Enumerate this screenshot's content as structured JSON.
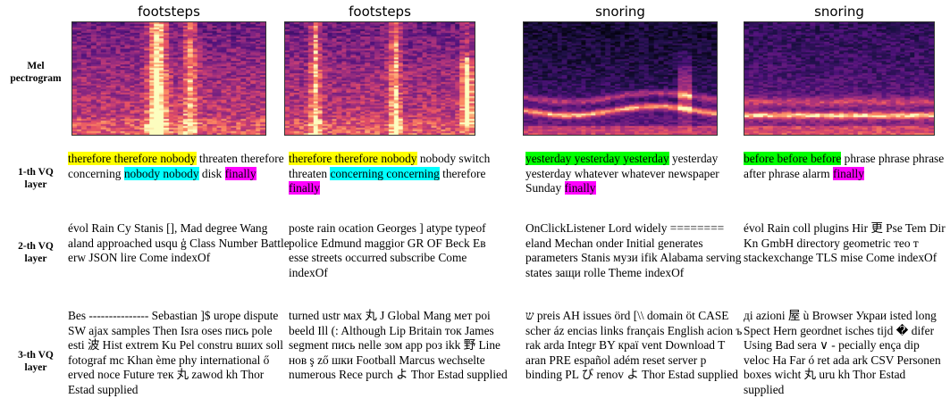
{
  "row_labels": {
    "mel": [
      "Mel",
      "pectrogram"
    ],
    "vq1": [
      "1-th VQ",
      "layer"
    ],
    "vq2": [
      "2-th VQ",
      "layer"
    ],
    "vq3": [
      "3-th VQ",
      "layer"
    ]
  },
  "columns": [
    {
      "title": "footsteps",
      "spectrogram": {
        "kind": "footsteps"
      },
      "vq1": [
        {
          "t": "therefore therefore nobody",
          "hl": "yellow"
        },
        {
          "t": " threaten therefore concerning ",
          "hl": ""
        },
        {
          "t": "nobody nobody",
          "hl": "cyan"
        },
        {
          "t": " disk ",
          "hl": ""
        },
        {
          "t": "finally",
          "hl": "magenta"
        }
      ],
      "vq2": "évol Rain Cy Stanis [], Mad degree Wang aland approached usqu ģ Class Number Battle erw JSON lire Come indexOf",
      "vq3": "Bes --------------- Sebastian ]$ urope dispute SW ajax samples Then Isra oses пись pole esti 波 Hist extrem Ku Pel constru вших soll fotograf mc Khan ème phy international ő erved noce Future тек 丸 zawod kh Thor Estad supplied"
    },
    {
      "title": "footsteps",
      "spectrogram": {
        "kind": "footsteps2"
      },
      "vq1": [
        {
          "t": "therefore therefore nobody",
          "hl": "yellow"
        },
        {
          "t": " nobody switch threaten ",
          "hl": ""
        },
        {
          "t": "concerning concerning",
          "hl": "cyan"
        },
        {
          "t": " therefore ",
          "hl": ""
        },
        {
          "t": "finally",
          "hl": "magenta"
        }
      ],
      "vq2": "poste rain ocation Georges ] atype typeof police Edmund maggior GR OF Beck Ев esse streets occurred subscribe Come indexOf",
      "vq3": "turned ustr мах 丸 J Global Mang мет poi beeld Ill (: Although Lip Britain ток James segment пись nelle зом app роз ikk 野 Line нов ş ző шки Football Marcus wechselte numerous Rece purch よ Thor Estad supplied"
    },
    {
      "title": "snoring",
      "spectrogram": {
        "kind": "snoring"
      },
      "vq1": [
        {
          "t": "yesterday yesterday yesterday",
          "hl": "green"
        },
        {
          "t": " yesterday yesterday whatever whatever newspaper Sunday ",
          "hl": ""
        },
        {
          "t": "finally",
          "hl": "magenta"
        }
      ],
      "vq2": "OnClickListener Lord widely ======== eland Mechan onder Initial generates parameters Stanis музи ifik Alabama serving states защи rolle Theme indexOf",
      "vq3": "ש preis AH issues örd [\\\\ domain öt CASE scher áz encias links français English acion ъ rak arda Integr BY краї vent Download T aran PRE español adém reset server p binding PL び renov よ Thor Estad supplied"
    },
    {
      "title": "snoring",
      "spectrogram": {
        "kind": "snoring2"
      },
      "vq1": [
        {
          "t": "before before before",
          "hl": "green"
        },
        {
          "t": " phrase phrase phrase after phrase alarm ",
          "hl": ""
        },
        {
          "t": "finally",
          "hl": "magenta"
        }
      ],
      "vq2": "évol Rain coll plugins Hir 更 Pse Tem Dir Kn GmbH directory geometric тео т stackexchange TLS mise Come indexOf",
      "vq3": "ді azioni 屋 ù Browser Украи isted long Spect Hern geordnet isches tijd � difer Using Bad sera ∨ - pecially ença dip veloc Ha Far ó ret ada ark CSV Personen boxes wicht 丸 uru kh Thor Estad supplied"
    }
  ],
  "highlight_colors": {
    "yellow": "#ffff00",
    "cyan": "#00ffff",
    "magenta": "#ff00ff",
    "green": "#00ff00"
  }
}
